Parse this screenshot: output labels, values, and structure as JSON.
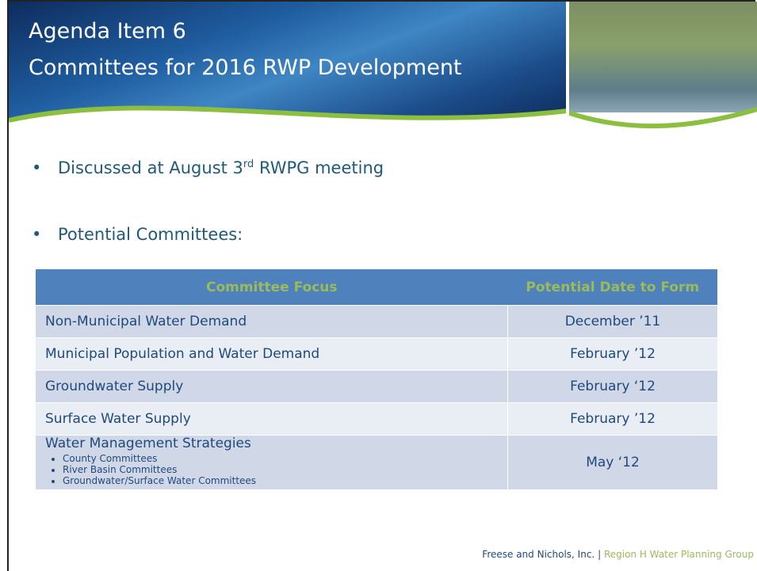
{
  "header": {
    "title_line1": "Agenda Item 6",
    "title_line2": "Committees for 2016 RWP Development"
  },
  "bullets": [
    {
      "text": "Discussed at August 3",
      "superscript": "rd",
      "text_after": " RWPG meeting"
    },
    {
      "text": "Potential Committees:"
    }
  ],
  "table": {
    "columns": [
      "Committee Focus",
      "Potential Date to Form"
    ],
    "rows": [
      {
        "focus": "Non-Municipal Water Demand",
        "date": "December ’11"
      },
      {
        "focus": "Municipal Population and Water Demand",
        "date": "February ’12"
      },
      {
        "focus": "Groundwater Supply",
        "date": "February ‘12"
      },
      {
        "focus": "Surface Water Supply",
        "date": "February ’12"
      },
      {
        "focus": "Water Management Strategies",
        "subitems": [
          "County Committees",
          "River Basin Committees",
          "Groundwater/Surface Water Committees"
        ],
        "date": "May ‘12"
      }
    ]
  },
  "footer": {
    "company": "Freese and Nichols, Inc.",
    "separator": "|",
    "group": "Region H Water Planning Group"
  }
}
